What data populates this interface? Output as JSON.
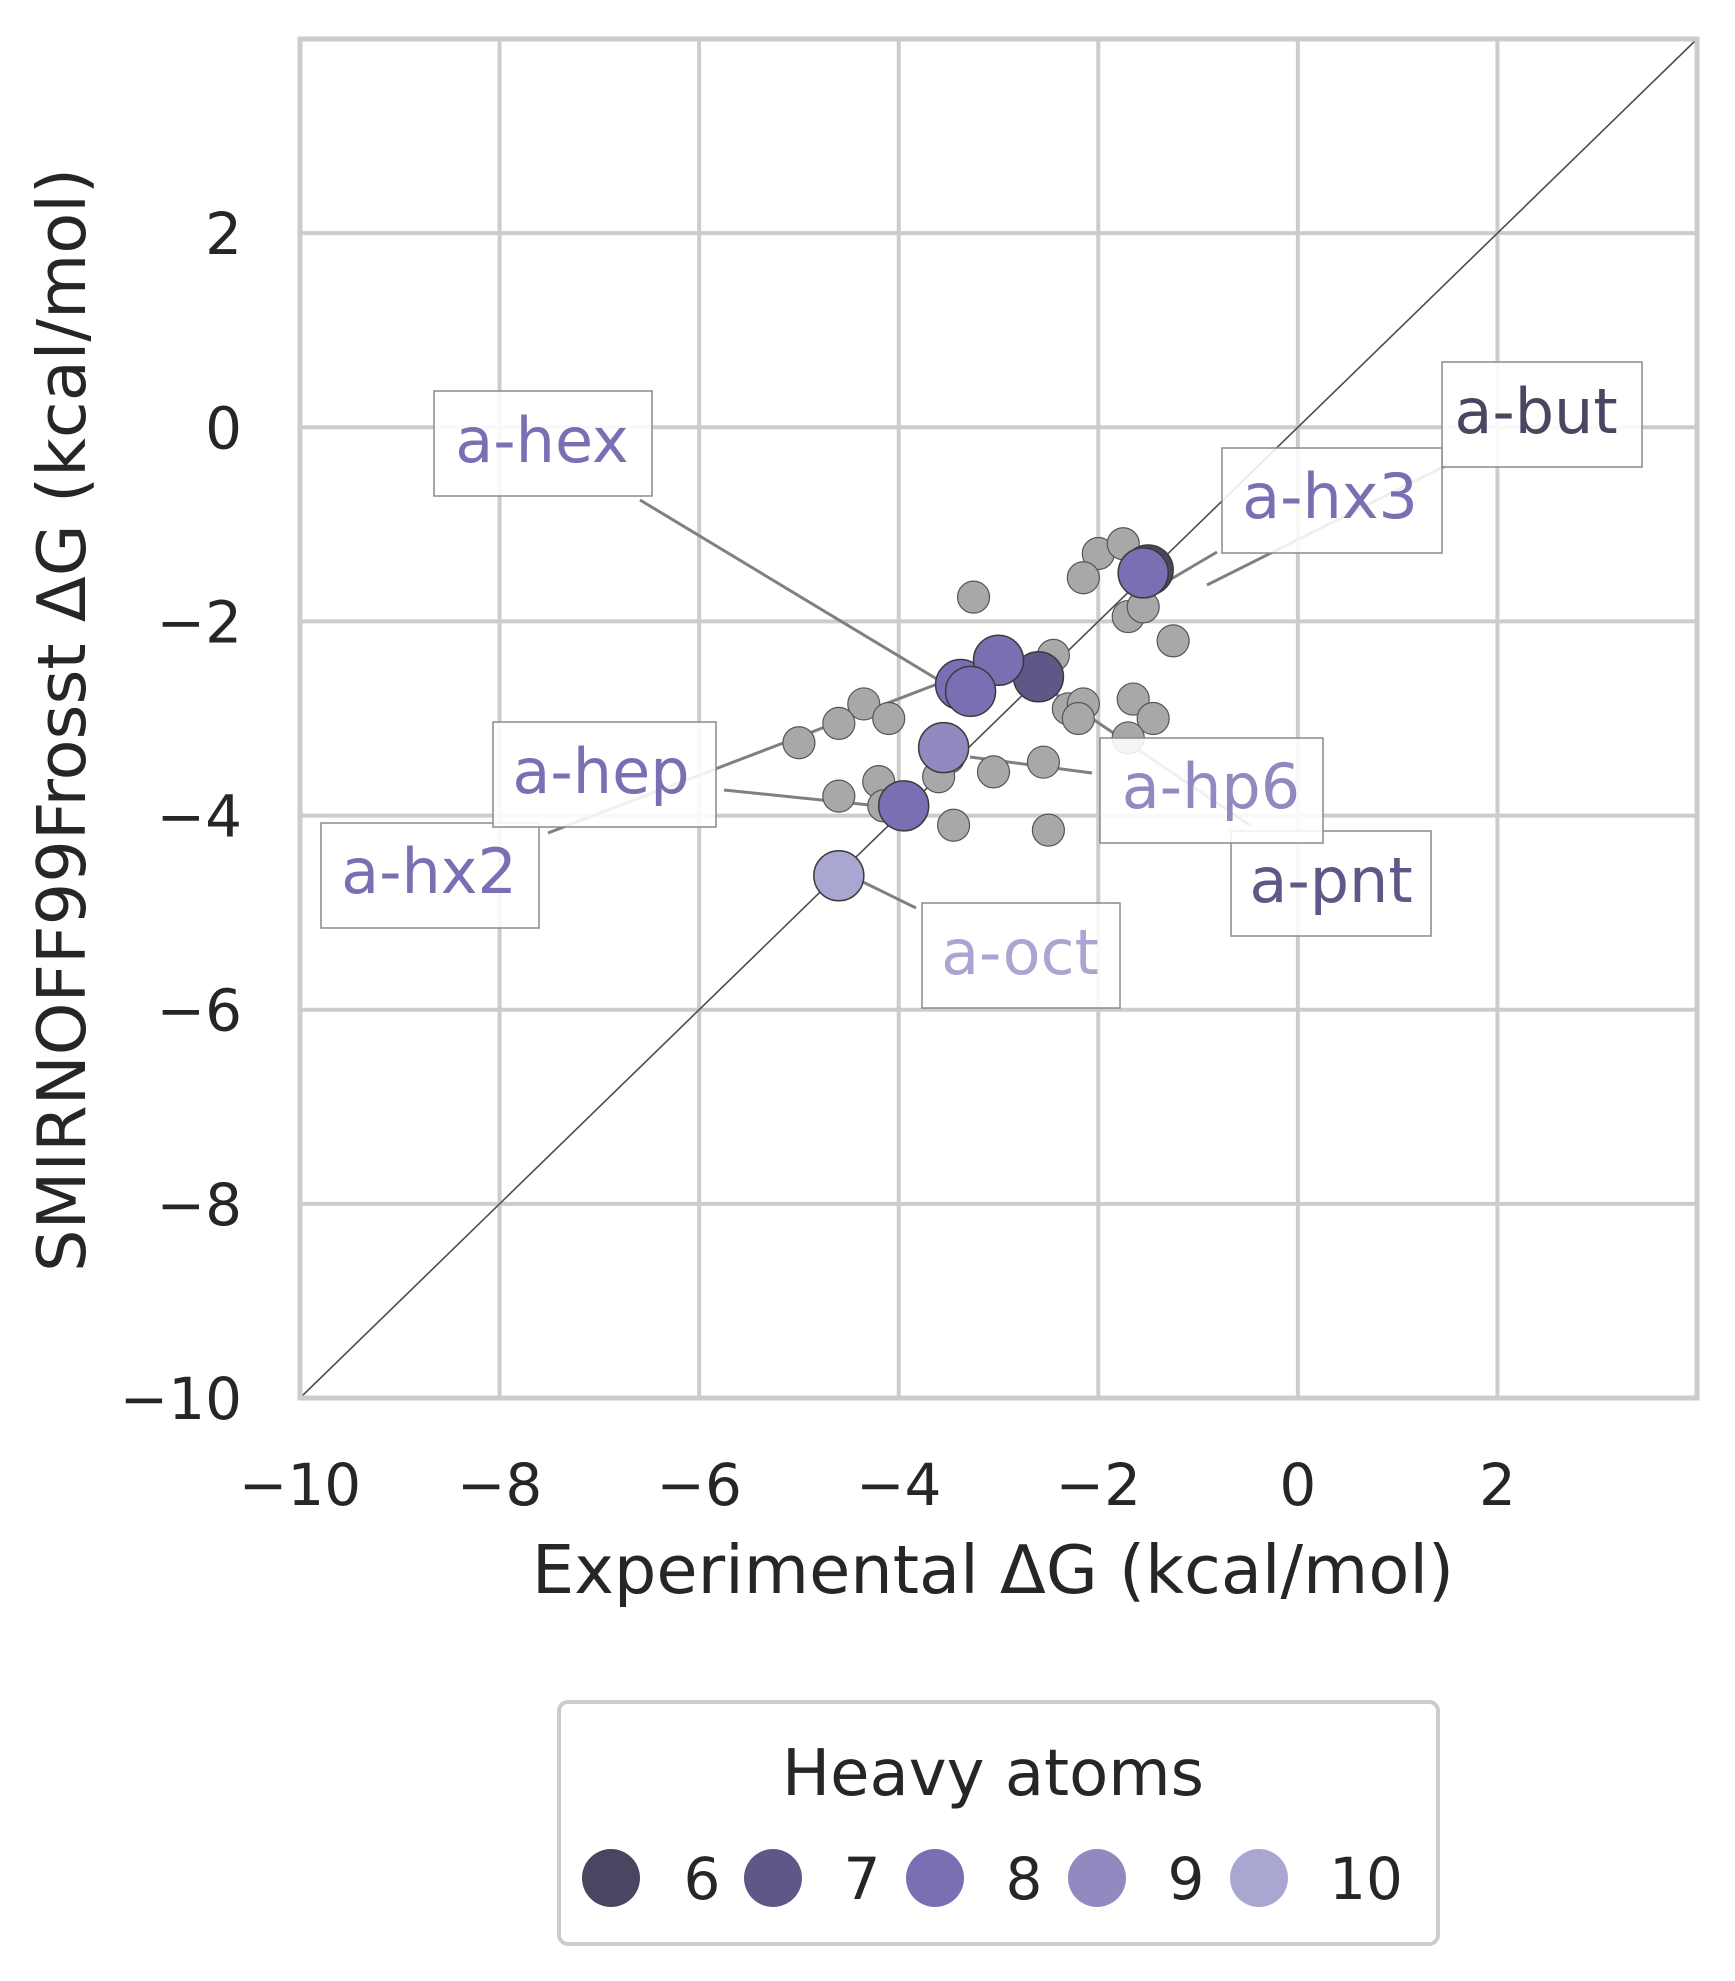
{
  "chart_data": {
    "type": "scatter",
    "xlabel": "Experimental ΔG (kcal/mol)",
    "ylabel": "SMIRNOFF99Frosst ΔG (kcal/mol)",
    "xlim": [
      -10,
      4
    ],
    "ylim": [
      -10,
      4
    ],
    "ticks": [
      -10,
      -8,
      -6,
      -4,
      -2,
      0,
      2
    ],
    "tick_labels": [
      "−10",
      "−8",
      "−6",
      "−4",
      "−2",
      "0",
      "2"
    ],
    "grid": true,
    "identity_line": true,
    "background_points": [
      [
        -2.0,
        -1.3
      ],
      [
        -1.75,
        -1.2
      ],
      [
        -2.15,
        -1.55
      ],
      [
        -1.7,
        -1.95
      ],
      [
        -1.55,
        -1.85
      ],
      [
        -1.25,
        -2.2
      ],
      [
        -3.25,
        -1.75
      ],
      [
        -2.45,
        -2.35
      ],
      [
        -2.6,
        -2.65
      ],
      [
        -2.3,
        -2.9
      ],
      [
        -2.15,
        -2.85
      ],
      [
        -2.2,
        -3.0
      ],
      [
        -1.65,
        -2.8
      ],
      [
        -1.45,
        -3.0
      ],
      [
        -1.7,
        -3.2
      ],
      [
        -4.35,
        -2.85
      ],
      [
        -4.6,
        -3.05
      ],
      [
        -4.1,
        -3.0
      ],
      [
        -5.0,
        -3.25
      ],
      [
        -3.5,
        -3.4
      ],
      [
        -3.6,
        -3.6
      ],
      [
        -3.05,
        -3.55
      ],
      [
        -2.55,
        -3.45
      ],
      [
        -4.2,
        -3.65
      ],
      [
        -4.6,
        -3.8
      ],
      [
        -4.15,
        -3.9
      ],
      [
        -3.45,
        -4.1
      ],
      [
        -2.5,
        -4.15
      ]
    ],
    "highlighted": [
      {
        "label": "a-but",
        "x": -1.5,
        "y": -1.47,
        "heavy_atoms": 6
      },
      {
        "label": "a-hx3",
        "x": -1.55,
        "y": -1.5,
        "heavy_atoms": 8
      },
      {
        "label": "a-pnt",
        "x": -2.6,
        "y": -2.57,
        "heavy_atoms": 7
      },
      {
        "label": "a-hex",
        "x": -3.38,
        "y": -2.65,
        "heavy_atoms": 8
      },
      {
        "label": "a-hx2",
        "x": -3.0,
        "y": -2.4,
        "heavy_atoms": 8
      },
      {
        "label": "a-hp6",
        "x": -3.55,
        "y": -3.3,
        "heavy_atoms": 9
      },
      {
        "label": "a-hep",
        "x": -3.95,
        "y": -3.9,
        "heavy_atoms": 8
      },
      {
        "label": "a-oct",
        "x": -4.6,
        "y": -4.62,
        "heavy_atoms": 10
      },
      {
        "label": "",
        "x": -3.28,
        "y": -2.72,
        "heavy_atoms": 8
      }
    ],
    "legend": {
      "title": "Heavy atoms",
      "placement": "bottom-center",
      "items": [
        {
          "label": "6",
          "color": "#4a4560"
        },
        {
          "label": "7",
          "color": "#5e5787"
        },
        {
          "label": "8",
          "color": "#7b6fb3"
        },
        {
          "label": "9",
          "color": "#9289c1"
        },
        {
          "label": "10",
          "color": "#aaa6d2"
        }
      ]
    },
    "colors": {
      "background_point": "#a8a8a8",
      "grid": "#cccccc",
      "identity_line": "#4d4d4d",
      "leader_line": "#808080"
    }
  }
}
